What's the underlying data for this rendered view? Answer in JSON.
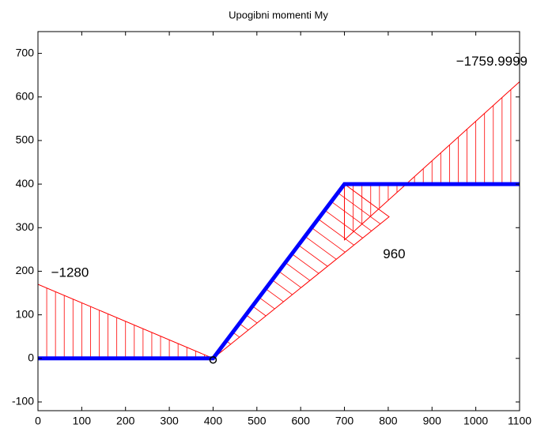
{
  "chart_data": {
    "type": "frame",
    "title": "Upogibni momenti My",
    "xlim": [
      0,
      1100
    ],
    "ylim": [
      -120,
      750
    ],
    "xticks": [
      0,
      100,
      200,
      300,
      400,
      500,
      600,
      700,
      800,
      900,
      1000,
      1100
    ],
    "yticks": [
      -100,
      0,
      100,
      200,
      300,
      400,
      500,
      600,
      700
    ],
    "frame": {
      "color": "#0000ff",
      "x": [
        0,
        400,
        700,
        1100
      ],
      "y": [
        0,
        0,
        400,
        400
      ]
    },
    "hinge": {
      "x": 400,
      "y": 0
    },
    "diagrams": [
      {
        "color": "#ff0000",
        "x": [
          0,
          0,
          400,
          400
        ],
        "y": [
          0,
          170,
          0,
          0
        ]
      },
      {
        "color": "#ff0000",
        "x": [
          400,
          400,
          802,
          700
        ],
        "y": [
          0,
          0,
          325,
          400
        ]
      },
      {
        "color": "#ff0000",
        "x": [
          700,
          700,
          1100,
          1100
        ],
        "y": [
          400,
          272,
          635,
          400
        ]
      }
    ],
    "annotations": [
      {
        "text": "−1280",
        "x": 30,
        "y": 195
      },
      {
        "text": "960",
        "x": 788,
        "y": 238
      },
      {
        "text": "−1759.9999",
        "x": 955,
        "y": 680
      }
    ]
  }
}
